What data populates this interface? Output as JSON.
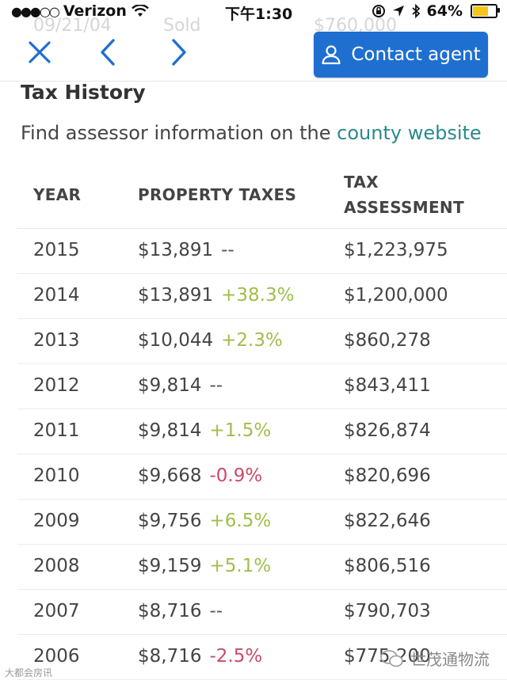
{
  "status_bar": {
    "carrier": "Verizon",
    "time": "下午1:30",
    "battery": "64%",
    "battery_level": 0.64
  },
  "ghost_row": {
    "date": "09/21/04",
    "event": "Sold",
    "price": "$760,000"
  },
  "nav": {
    "contact_label": "Contact agent"
  },
  "section": {
    "title": "Tax History",
    "intro_text": "Find assessor information on the ",
    "intro_link": "county website"
  },
  "table": {
    "headers": {
      "year": "YEAR",
      "taxes": "PROPERTY TAXES",
      "assessment_line1": "TAX",
      "assessment_line2": "ASSESSMENT"
    },
    "rows": [
      {
        "year": "2015",
        "tax": "$13,891",
        "change": "--",
        "change_type": "flat",
        "assessment": "$1,223,975"
      },
      {
        "year": "2014",
        "tax": "$13,891",
        "change": "+38.3%",
        "change_type": "pos",
        "assessment": "$1,200,000"
      },
      {
        "year": "2013",
        "tax": "$10,044",
        "change": "+2.3%",
        "change_type": "pos",
        "assessment": "$860,278"
      },
      {
        "year": "2012",
        "tax": "$9,814",
        "change": "--",
        "change_type": "flat",
        "assessment": "$843,411"
      },
      {
        "year": "2011",
        "tax": "$9,814",
        "change": "+1.5%",
        "change_type": "pos",
        "assessment": "$826,874"
      },
      {
        "year": "2010",
        "tax": "$9,668",
        "change": "-0.9%",
        "change_type": "neg",
        "assessment": "$820,696"
      },
      {
        "year": "2009",
        "tax": "$9,756",
        "change": "+6.5%",
        "change_type": "pos",
        "assessment": "$822,646"
      },
      {
        "year": "2008",
        "tax": "$9,159",
        "change": "+5.1%",
        "change_type": "pos",
        "assessment": "$806,516"
      },
      {
        "year": "2007",
        "tax": "$8,716",
        "change": "--",
        "change_type": "flat",
        "assessment": "$790,703"
      },
      {
        "year": "2006",
        "tax": "$8,716",
        "change": "-2.5%",
        "change_type": "neg",
        "assessment": "$775,200"
      }
    ]
  },
  "watermarks": {
    "right": "世茂通物流",
    "left": "大都会房讯"
  },
  "colors": {
    "accent": "#1f6fd1",
    "link": "#2a8a8c",
    "positive": "#9fbe4a",
    "negative": "#c94a6a"
  }
}
